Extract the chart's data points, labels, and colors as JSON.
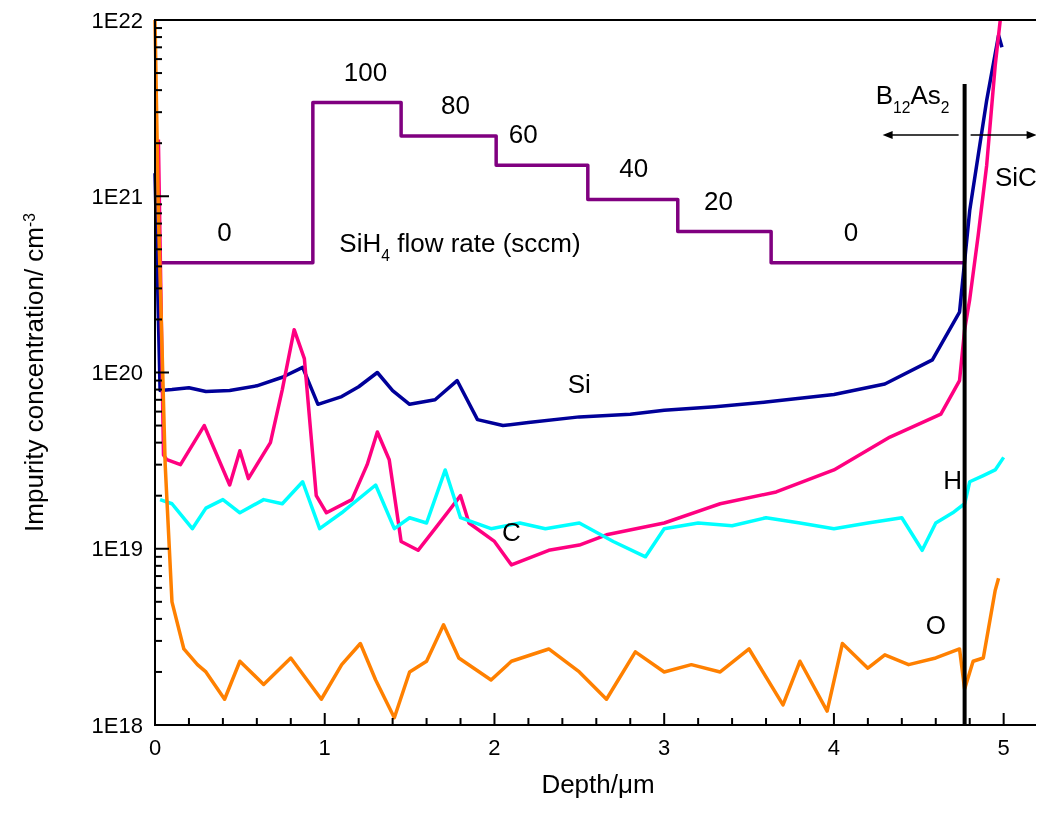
{
  "chart_data": {
    "type": "line",
    "xlabel": "Depth/μm",
    "ylabel": "Impurity concentration/ cm$^{-3}$",
    "log": "y",
    "grid": false,
    "marker": "none",
    "line_style": "solid",
    "xlim": [
      0,
      5.22
    ],
    "xticks": [
      0,
      {
        "value": 0.2,
        "label": null
      },
      {
        "value": 0.4,
        "label": null
      },
      {
        "value": 0.6,
        "label": null
      },
      {
        "value": 0.8,
        "label": null
      },
      1,
      {
        "value": 1.2,
        "label": null
      },
      {
        "value": 1.4,
        "label": null
      },
      {
        "value": 1.6,
        "label": null
      },
      {
        "value": 1.8,
        "label": null
      },
      2,
      {
        "value": 2.2,
        "label": null
      },
      {
        "value": 2.4,
        "label": null
      },
      {
        "value": 2.6,
        "label": null
      },
      {
        "value": 2.8,
        "label": null
      },
      3,
      {
        "value": 3.2,
        "label": null
      },
      {
        "value": 3.4,
        "label": null
      },
      {
        "value": 3.6,
        "label": null
      },
      {
        "value": 3.8,
        "label": null
      },
      4,
      {
        "value": 4.2,
        "label": null
      },
      {
        "value": 4.4,
        "label": null
      },
      {
        "value": 4.6,
        "label": null
      },
      {
        "value": 4.8,
        "label": null
      },
      5
    ],
    "ylim": [
      1e+18,
      1e+22
    ],
    "yticks": [
      {
        "value": 1e+18,
        "label": "1E18"
      },
      {
        "value": 2e+18,
        "label": null
      },
      {
        "value": 3e+18,
        "label": null
      },
      {
        "value": 4e+18,
        "label": null
      },
      {
        "value": 5e+18,
        "label": null
      },
      {
        "value": 6e+18,
        "label": null
      },
      {
        "value": 7e+18,
        "label": null
      },
      {
        "value": 8e+18,
        "label": null
      },
      {
        "value": 9e+18,
        "label": null
      },
      {
        "value": 1e+19,
        "label": "1E19"
      },
      {
        "value": 2e+19,
        "label": null
      },
      {
        "value": 3e+19,
        "label": null
      },
      {
        "value": 4e+19,
        "label": null
      },
      {
        "value": 5e+19,
        "label": null
      },
      {
        "value": 6e+19,
        "label": null
      },
      {
        "value": 7e+19,
        "label": null
      },
      {
        "value": 8e+19,
        "label": null
      },
      {
        "value": 9e+19,
        "label": null
      },
      {
        "value": 1e+20,
        "label": "1E20"
      },
      {
        "value": 2e+20,
        "label": null
      },
      {
        "value": 3e+20,
        "label": null
      },
      {
        "value": 4e+20,
        "label": null
      },
      {
        "value": 5e+20,
        "label": null
      },
      {
        "value": 6e+20,
        "label": null
      },
      {
        "value": 7e+20,
        "label": null
      },
      {
        "value": 8e+20,
        "label": null
      },
      {
        "value": 9e+20,
        "label": null
      },
      {
        "value": 1e+21,
        "label": "1E21"
      },
      {
        "value": 2e+21,
        "label": null
      },
      {
        "value": 3e+21,
        "label": null
      },
      {
        "value": 4e+21,
        "label": null
      },
      {
        "value": 5e+21,
        "label": null
      },
      {
        "value": 6e+21,
        "label": null
      },
      {
        "value": 7e+21,
        "label": null
      },
      {
        "value": 8e+21,
        "label": null
      },
      {
        "value": 9e+21,
        "label": null
      },
      {
        "value": 1e+22,
        "label": "1E22"
      }
    ],
    "series": [
      {
        "type": "step",
        "color": "#800080",
        "x": [
          0.03,
          0.93,
          1.45,
          2.01,
          2.55,
          3.08,
          3.63,
          4.77
        ],
        "values": [
          4.2e+20,
          3.4e+21,
          2.2e+21,
          1.5e+21,
          9.6e+20,
          6.3e+20,
          4.2e+20,
          4.2e+20
        ]
      },
      {
        "name": "Si",
        "color": "#000099",
        "x": [
          0.0,
          0.03,
          0.1,
          0.2,
          0.3,
          0.44,
          0.6,
          0.75,
          0.87,
          0.96,
          1.1,
          1.2,
          1.31,
          1.4,
          1.5,
          1.65,
          1.78,
          1.9,
          2.05,
          2.2,
          2.5,
          2.8,
          3.0,
          3.3,
          3.6,
          4.0,
          4.3,
          4.58,
          4.74,
          4.8,
          4.9,
          4.97,
          4.99
        ],
        "values": [
          1.35e+21,
          7.9e+19,
          8e+19,
          8.2e+19,
          7.8e+19,
          7.9e+19,
          8.4e+19,
          9.4e+19,
          1.07e+20,
          6.6e+19,
          7.3e+19,
          8.3e+19,
          1e+20,
          7.9e+19,
          6.6e+19,
          7e+19,
          9e+19,
          5.4e+19,
          5e+19,
          5.2e+19,
          5.6e+19,
          5.8e+19,
          6.1e+19,
          6.4e+19,
          6.8e+19,
          7.5e+19,
          8.6e+19,
          1.18e+20,
          2.2e+20,
          8.3e+20,
          3.5e+21,
          8.2e+21,
          7e+21
        ]
      },
      {
        "name": "C",
        "color": "#ff0080",
        "x": [
          0.02,
          0.05,
          0.07,
          0.15,
          0.29,
          0.44,
          0.5,
          0.55,
          0.68,
          0.75,
          0.82,
          0.88,
          0.95,
          1.01,
          1.16,
          1.25,
          1.31,
          1.38,
          1.45,
          1.55,
          1.65,
          1.8,
          1.85,
          2.0,
          2.1,
          2.32,
          2.5,
          2.66,
          3.0,
          3.33,
          3.66,
          4.0,
          4.33,
          4.63,
          4.74,
          4.77,
          4.8,
          4.85,
          4.9,
          4.95,
          4.98
        ],
        "values": [
          2.1e+21,
          3.4e+19,
          3.2e+19,
          3e+19,
          5e+19,
          2.3e+19,
          3.6e+19,
          2.5e+19,
          4e+19,
          8e+19,
          1.75e+20,
          1.2e+20,
          2e+19,
          1.6e+19,
          1.9e+19,
          3e+19,
          4.6e+19,
          3.2e+19,
          1.1e+19,
          9.8e+18,
          1.3e+19,
          2e+19,
          1.4e+19,
          1.1e+19,
          8.1e+18,
          9.8e+18,
          1.05e+19,
          1.2e+19,
          1.4e+19,
          1.8e+19,
          2.1e+19,
          2.8e+19,
          4.3e+19,
          5.8e+19,
          9e+19,
          1.75e+20,
          2.6e+20,
          6e+20,
          1.5e+21,
          5.5e+21,
          1e+22
        ]
      },
      {
        "name": "H",
        "color": "#00ffff",
        "x": [
          0.03,
          0.1,
          0.22,
          0.3,
          0.4,
          0.5,
          0.64,
          0.75,
          0.87,
          0.97,
          1.1,
          1.3,
          1.41,
          1.5,
          1.6,
          1.71,
          1.8,
          1.98,
          2.15,
          2.3,
          2.5,
          2.7,
          2.89,
          3.0,
          3.2,
          3.4,
          3.6,
          3.8,
          4.0,
          4.2,
          4.4,
          4.52,
          4.6,
          4.7,
          4.77,
          4.8,
          4.88,
          4.95,
          5.0
        ],
        "values": [
          1.9e+19,
          1.8e+19,
          1.3e+19,
          1.7e+19,
          1.9e+19,
          1.6e+19,
          1.9e+19,
          1.8e+19,
          2.4e+19,
          1.3e+19,
          1.6e+19,
          2.3e+19,
          1.3e+19,
          1.5e+19,
          1.4e+19,
          2.8e+19,
          1.5e+19,
          1.3e+19,
          1.4e+19,
          1.3e+19,
          1.4e+19,
          1.1e+19,
          9e+18,
          1.3e+19,
          1.4e+19,
          1.35e+19,
          1.5e+19,
          1.4e+19,
          1.3e+19,
          1.4e+19,
          1.5e+19,
          9.8e+18,
          1.4e+19,
          1.6e+19,
          1.8e+19,
          2.4e+19,
          2.6e+19,
          2.8e+19,
          3.3e+19
        ]
      },
      {
        "name": "O",
        "color": "#ff8000",
        "x": [
          0.0,
          0.02,
          0.06,
          0.1,
          0.17,
          0.25,
          0.3,
          0.41,
          0.5,
          0.64,
          0.8,
          0.98,
          1.1,
          1.21,
          1.3,
          1.41,
          1.5,
          1.6,
          1.7,
          1.79,
          1.98,
          2.1,
          2.32,
          2.5,
          2.66,
          2.83,
          3.0,
          3.16,
          3.33,
          3.5,
          3.7,
          3.8,
          3.96,
          4.05,
          4.2,
          4.3,
          4.44,
          4.6,
          4.74,
          4.77,
          4.82,
          4.88,
          4.91,
          4.95,
          4.97
        ],
        "values": [
          1e+22,
          8e+20,
          3e+19,
          5e+18,
          2.7e+18,
          2.2e+18,
          2e+18,
          1.4e+18,
          2.3e+18,
          1.7e+18,
          2.4e+18,
          1.4e+18,
          2.2e+18,
          2.9e+18,
          1.8e+18,
          1.1e+18,
          2e+18,
          2.3e+18,
          3.7e+18,
          2.4e+18,
          1.8e+18,
          2.3e+18,
          2.7e+18,
          2e+18,
          1.4e+18,
          2.6e+18,
          2e+18,
          2.2e+18,
          2e+18,
          2.7e+18,
          1.3e+18,
          2.3e+18,
          1.2e+18,
          2.9e+18,
          2.1e+18,
          2.5e+18,
          2.2e+18,
          2.4e+18,
          2.7e+18,
          1.6e+18,
          2.3e+18,
          2.4e+18,
          3.5e+18,
          5.8e+18,
          6.8e+18
        ]
      }
    ],
    "ref_lines": [
      {
        "axis": "x",
        "value": 4.77,
        "color": "#000000",
        "label": "B$_{12}$As$_{2}$"
      }
    ],
    "annotations": [
      {
        "text": "0",
        "x": 0.41,
        "y": 4.2e+20
      },
      {
        "text": "100",
        "x": 1.24,
        "y": 3.4e+21
      },
      {
        "text": "80",
        "x": 1.77,
        "y": 2.2e+21
      },
      {
        "text": "60",
        "x": 2.17,
        "y": 1.5e+21
      },
      {
        "text": "40",
        "x": 2.82,
        "y": 9.6e+20
      },
      {
        "text": "20",
        "x": 3.32,
        "y": 6.3e+20
      },
      {
        "text": "0",
        "x": 4.1,
        "y": 4.2e+20
      },
      "SiH$_{4}$ flow rate (sccm)",
      "SiC"
    ]
  }
}
